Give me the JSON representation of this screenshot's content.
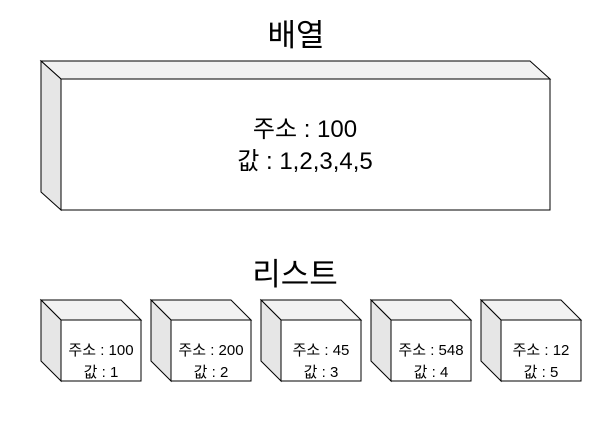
{
  "array": {
    "title": "배열",
    "address_line": "주소 : 100",
    "value_line": "값 : 1,2,3,4,5"
  },
  "list": {
    "title": "리스트",
    "nodes": [
      {
        "address_line": "주소 : 100",
        "value_line": "값 : 1"
      },
      {
        "address_line": "주소 : 200",
        "value_line": "값 : 2"
      },
      {
        "address_line": "주소 : 45",
        "value_line": "값 : 3"
      },
      {
        "address_line": "주소 : 548",
        "value_line": "값 : 4"
      },
      {
        "address_line": "주소 : 12",
        "value_line": "값 : 5"
      }
    ]
  }
}
